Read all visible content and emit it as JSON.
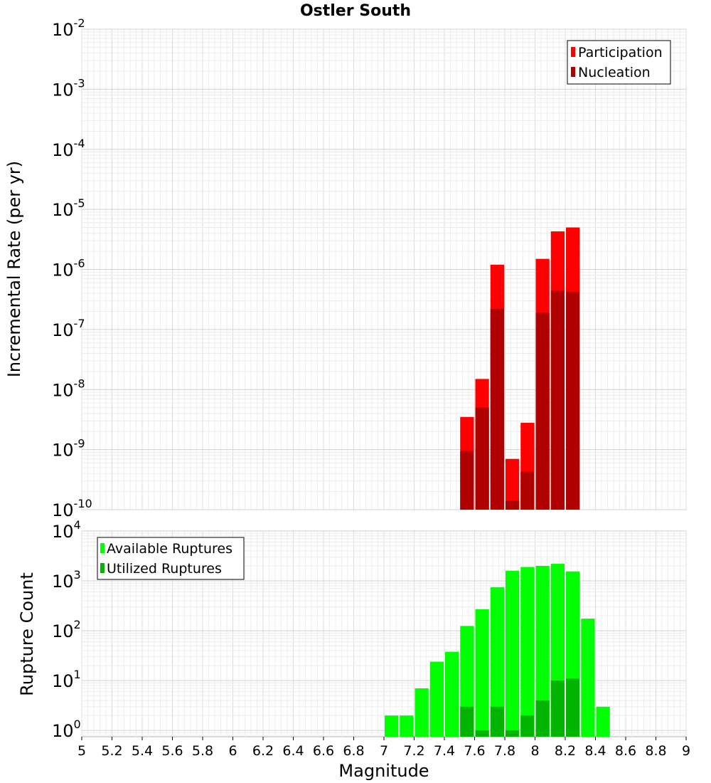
{
  "title": "Ostler South",
  "x_axis": {
    "label": "Magnitude",
    "range": [
      5,
      9
    ],
    "ticks": [
      5,
      5.2,
      5.4,
      5.6,
      5.8,
      6,
      6.2,
      6.4,
      6.6,
      6.8,
      7,
      7.2,
      7.4,
      7.6,
      7.8,
      8,
      8.2,
      8.4,
      8.6,
      8.8,
      9
    ],
    "tick_labels": [
      "5",
      "5.2",
      "5.4",
      "5.6",
      "5.8",
      "6",
      "6.2",
      "6.4",
      "6.6",
      "6.8",
      "7",
      "7.2",
      "7.4",
      "7.6",
      "7.8",
      "8",
      "8.2",
      "8.4",
      "8.6",
      "8.8",
      "9"
    ]
  },
  "chart_data": [
    {
      "type": "bar",
      "ylabel": "Incremental Rate (per yr)",
      "yscale": "log",
      "ylim": [
        1e-10,
        0.01
      ],
      "y_ticks": [
        {
          "value": 0.01,
          "base": "10",
          "exp": "-2"
        },
        {
          "value": 0.001,
          "base": "10",
          "exp": "-3"
        },
        {
          "value": 0.0001,
          "base": "10",
          "exp": "-4"
        },
        {
          "value": 1e-05,
          "base": "10",
          "exp": "-5"
        },
        {
          "value": 1e-06,
          "base": "10",
          "exp": "-6"
        },
        {
          "value": 1e-07,
          "base": "10",
          "exp": "-7"
        },
        {
          "value": 1e-08,
          "base": "10",
          "exp": "-8"
        },
        {
          "value": 1e-09,
          "base": "10",
          "exp": "-9"
        },
        {
          "value": 1e-10,
          "base": "10",
          "exp": "-10"
        }
      ],
      "bar_width": 0.1,
      "legend": "top-right",
      "grid": true,
      "series": [
        {
          "name": "Participation",
          "color": "#ff0000",
          "x": [
            7.55,
            7.65,
            7.75,
            7.85,
            7.95,
            8.05,
            8.15,
            8.25
          ],
          "values": [
            3.5e-09,
            1.5e-08,
            1.2e-06,
            7e-10,
            2.8e-09,
            1.5e-06,
            4.3e-06,
            5e-06
          ]
        },
        {
          "name": "Nucleation",
          "color": "#b00000",
          "x": [
            7.55,
            7.65,
            7.75,
            7.85,
            7.95,
            8.05,
            8.15,
            8.25
          ],
          "values": [
            9.5e-10,
            5e-09,
            2.2e-07,
            1.4e-10,
            4.3e-10,
            1.9e-07,
            4.4e-07,
            4.2e-07
          ]
        }
      ]
    },
    {
      "type": "bar",
      "ylabel": "Rupture Count",
      "yscale": "log",
      "ylim": [
        0.75,
        10000
      ],
      "y_ticks": [
        {
          "value": 10000,
          "base": "10",
          "exp": "4"
        },
        {
          "value": 1000,
          "base": "10",
          "exp": "3"
        },
        {
          "value": 100,
          "base": "10",
          "exp": "2"
        },
        {
          "value": 10,
          "base": "10",
          "exp": "1"
        },
        {
          "value": 1,
          "base": "10",
          "exp": "0"
        }
      ],
      "bar_width": 0.1,
      "legend": "top-left",
      "grid": true,
      "series": [
        {
          "name": "Available Ruptures",
          "color": "#00ff00",
          "x": [
            7.05,
            7.15,
            7.25,
            7.35,
            7.45,
            7.55,
            7.65,
            7.75,
            7.85,
            7.95,
            8.05,
            8.15,
            8.25,
            8.35,
            8.45
          ],
          "values": [
            2,
            2,
            7,
            24,
            38,
            125,
            270,
            750,
            1600,
            1900,
            2000,
            2200,
            1550,
            175,
            3
          ]
        },
        {
          "name": "Utilized Ruptures",
          "color": "#00b400",
          "x": [
            7.55,
            7.65,
            7.75,
            7.85,
            7.95,
            8.05,
            8.15,
            8.25
          ],
          "values": [
            3,
            1,
            3,
            1,
            2,
            4,
            10,
            11
          ]
        }
      ]
    }
  ]
}
